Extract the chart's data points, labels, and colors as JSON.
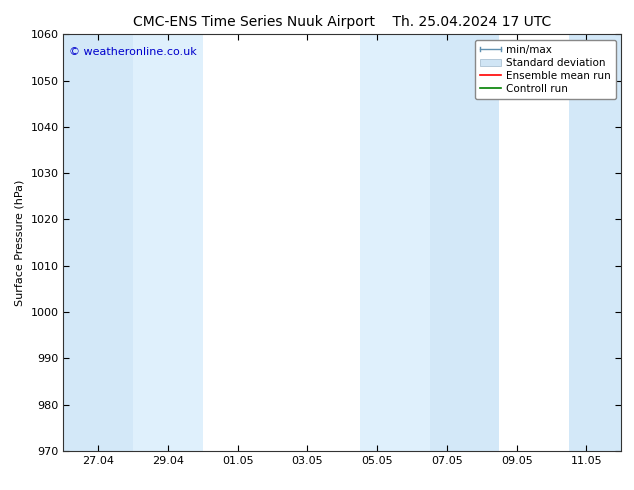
{
  "title_left": "CMC-ENS Time Series Nuuk Airport",
  "title_right": "Th. 25.04.2024 17 UTC",
  "ylabel": "Surface Pressure (hPa)",
  "ylim": [
    970,
    1060
  ],
  "yticks": [
    970,
    980,
    990,
    1000,
    1010,
    1020,
    1030,
    1040,
    1050,
    1060
  ],
  "xtick_labels": [
    "27.04",
    "29.04",
    "01.05",
    "03.05",
    "05.05",
    "07.05",
    "09.05",
    "11.05"
  ],
  "xlim_start": 0,
  "xlim_end": 16,
  "day_ticks": [
    1,
    3,
    5,
    7,
    9,
    11,
    13,
    15
  ],
  "bg_color": "#ffffff",
  "plot_bg_color": "#ffffff",
  "shaded_regions": [
    {
      "start": 0.0,
      "end": 2.0,
      "color": "#d3e8f8"
    },
    {
      "start": 2.0,
      "end": 4.0,
      "color": "#dff0fc"
    },
    {
      "start": 8.5,
      "end": 10.5,
      "color": "#dff0fc"
    },
    {
      "start": 10.5,
      "end": 12.5,
      "color": "#d3e8f8"
    },
    {
      "start": 14.5,
      "end": 16.0,
      "color": "#d3e8f8"
    }
  ],
  "watermark": "© weatheronline.co.uk",
  "watermark_color": "#0000cc",
  "legend_items": [
    {
      "label": "min/max",
      "color": "#b8d4ea",
      "type": "hline_capped"
    },
    {
      "label": "Standard deviation",
      "color": "#d0e5f5",
      "type": "rect"
    },
    {
      "label": "Ensemble mean run",
      "color": "#ff0000",
      "type": "line"
    },
    {
      "label": "Controll run",
      "color": "#008000",
      "type": "line"
    }
  ],
  "title_fontsize": 10,
  "tick_fontsize": 8,
  "ylabel_fontsize": 8,
  "legend_fontsize": 7.5
}
